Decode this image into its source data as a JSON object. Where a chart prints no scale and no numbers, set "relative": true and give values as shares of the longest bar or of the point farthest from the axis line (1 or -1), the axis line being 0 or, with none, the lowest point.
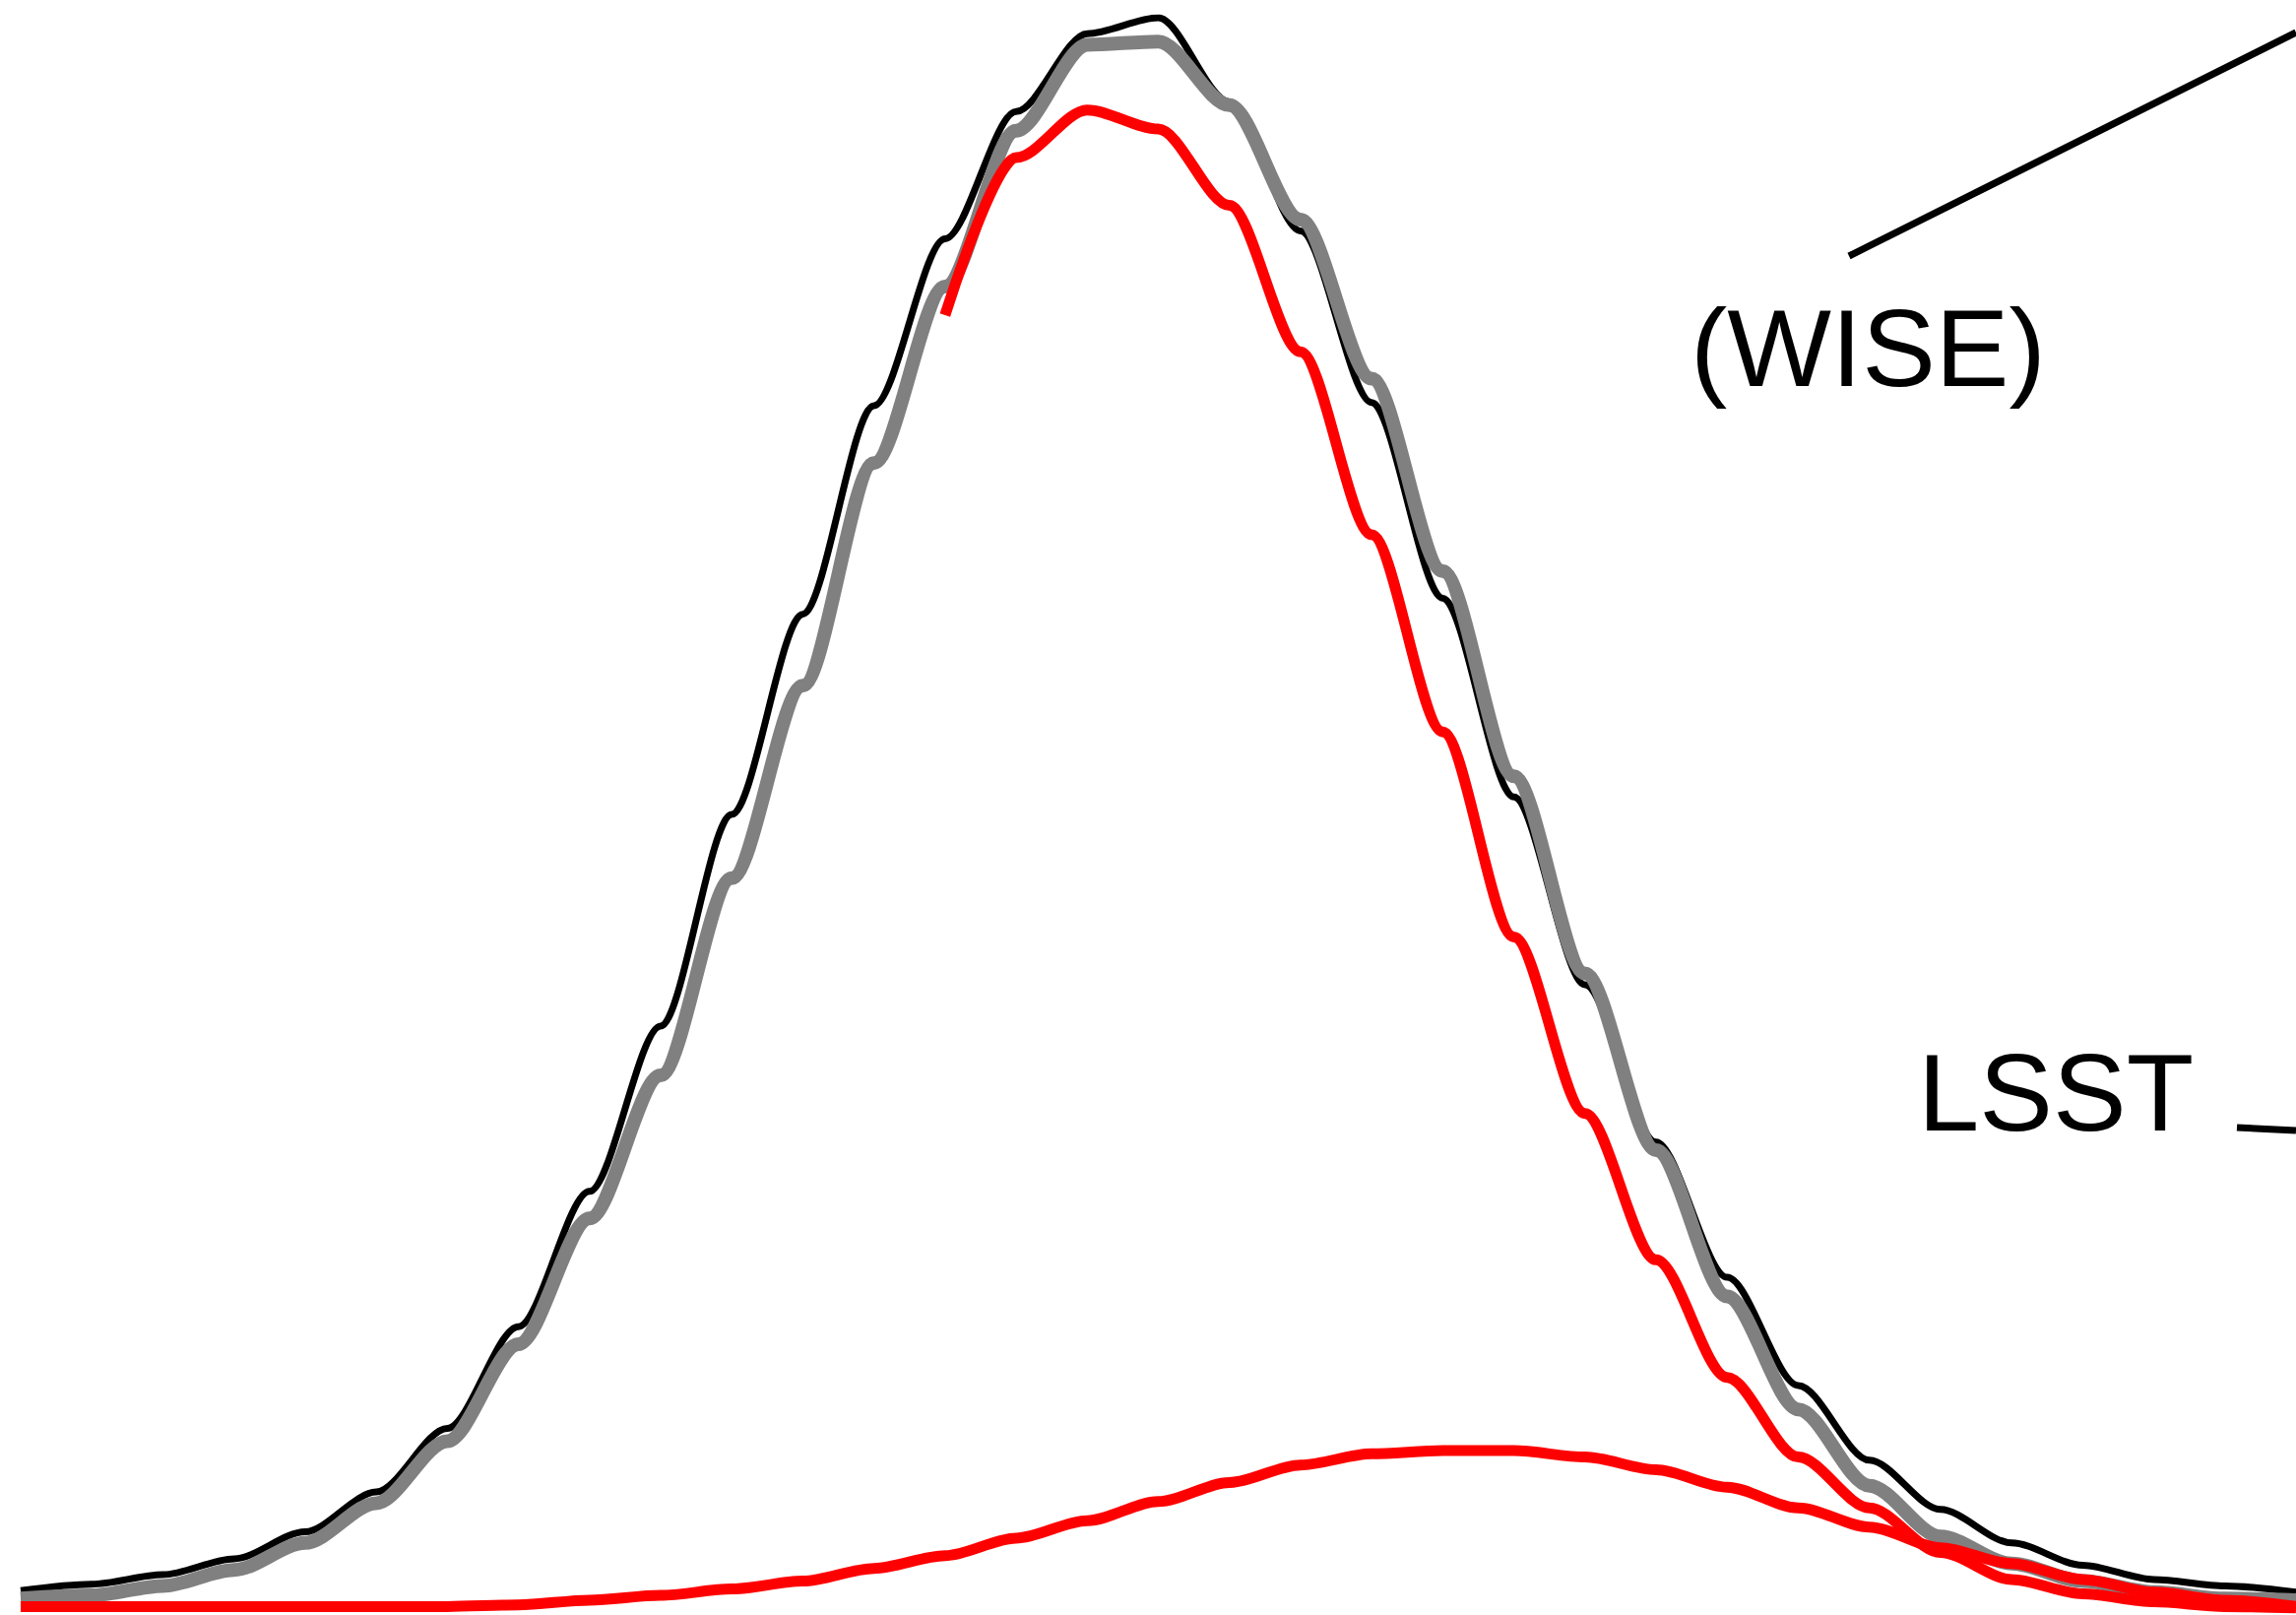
{
  "chart_data": {
    "type": "line",
    "relative": true,
    "marker": "none",
    "line_style": "solid",
    "annotations": [
      "(WISE)",
      "LSST"
    ],
    "categories": [
      null,
      null,
      null,
      null,
      null,
      null,
      null,
      null,
      null,
      null,
      null,
      null,
      null,
      null,
      null,
      null,
      null,
      null,
      null,
      null,
      null,
      null,
      null,
      null,
      null,
      null,
      null,
      null,
      null,
      null,
      null,
      null,
      null
    ],
    "series": [
      {
        "color": "#000000",
        "values": [
          0.011,
          0.015,
          0.021,
          0.031,
          0.048,
          0.073,
          0.113,
          0.177,
          0.262,
          0.366,
          0.499,
          0.625,
          0.756,
          0.861,
          0.941,
          0.99,
          1,
          0.947,
          0.866,
          0.758,
          0.635,
          0.51,
          0.392,
          0.293,
          0.208,
          0.14,
          0.093,
          0.062,
          0.041,
          0.027,
          0.018,
          0.014,
          0.01
        ]
      },
      {
        "color": "#808080",
        "values": [
          0.006,
          0.008,
          0.014,
          0.024,
          0.041,
          0.066,
          0.105,
          0.166,
          0.245,
          0.335,
          0.459,
          0.58,
          0.72,
          0.831,
          0.929,
          0.983,
          0.985,
          0.945,
          0.873,
          0.773,
          0.652,
          0.523,
          0.399,
          0.288,
          0.196,
          0.125,
          0.077,
          0.045,
          0.028,
          0.017,
          0.01,
          0.006,
          0.005
        ]
      },
      {
        "color": "#ff0000",
        "values": [
          null,
          null,
          null,
          null,
          null,
          null,
          null,
          null,
          null,
          null,
          null,
          null,
          null,
          0.813,
          0.912,
          0.942,
          0.93,
          0.882,
          0.79,
          0.675,
          0.551,
          0.422,
          0.311,
          0.219,
          0.145,
          0.095,
          0.063,
          0.035,
          0.018,
          0.009,
          0.004,
          0.001,
          0
        ]
      },
      {
        "color": "#ff0000",
        "values": [
          0.001,
          0.001,
          0.001,
          0.001,
          0.001,
          0.001,
          0.001,
          0.002,
          0.005,
          0.008,
          0.012,
          0.017,
          0.025,
          0.033,
          0.044,
          0.055,
          0.067,
          0.079,
          0.09,
          0.097,
          0.099,
          0.099,
          0.095,
          0.087,
          0.076,
          0.063,
          0.051,
          0.038,
          0.028,
          0.018,
          0.01,
          0.005,
          0.001
        ]
      }
    ]
  }
}
